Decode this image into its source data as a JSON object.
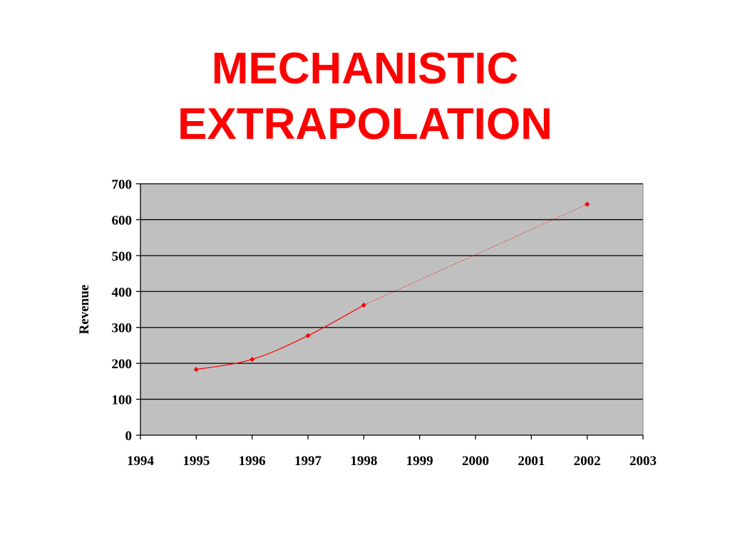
{
  "slide": {
    "title_line1": "MECHANISTIC",
    "title_line2": "EXTRAPOLATION",
    "title_color": "#ff0000"
  },
  "chart_data": {
    "type": "scatter",
    "title": "",
    "xlabel": "",
    "ylabel": "Revenue",
    "xlim": [
      1994,
      2003
    ],
    "ylim": [
      0,
      700
    ],
    "x_ticks": [
      1994,
      1995,
      1996,
      1997,
      1998,
      1999,
      2000,
      2001,
      2002,
      2003
    ],
    "y_ticks": [
      0,
      100,
      200,
      300,
      400,
      500,
      600,
      700
    ],
    "grid": "horizontal",
    "legend": "none",
    "plot_background": "#c0c0c0",
    "series": [
      {
        "x": [
          1995,
          1996,
          1997,
          1998,
          2002
        ],
        "y": [
          183,
          211,
          277,
          362,
          643
        ],
        "marker": "diamond",
        "color": "#ff0000"
      }
    ],
    "trend_fit": {
      "x": [
        1995,
        1996,
        1997,
        1998
      ],
      "y": [
        183,
        211,
        277,
        362
      ],
      "style": "solid",
      "color": "#ff0000"
    },
    "extrapolation": {
      "x": [
        1998,
        2002
      ],
      "y": [
        362,
        643
      ],
      "style": "dotted",
      "color": "#ff0000"
    }
  }
}
